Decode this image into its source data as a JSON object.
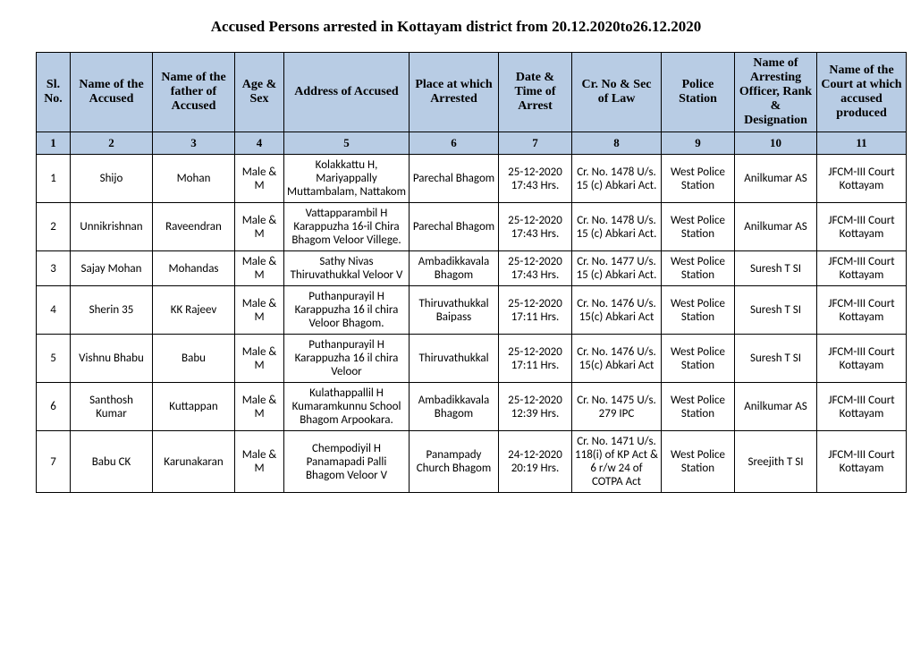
{
  "title": "Accused Persons arrested in   Kottayam    district from  20.12.2020to26.12.2020",
  "columns": [
    "Sl. No.",
    "Name of the Accused",
    "Name of the father of Accused",
    "Age & Sex",
    "Address of Accused",
    "Place at which Arrested",
    "Date & Time of Arrest",
    "Cr. No & Sec of Law",
    "Police Station",
    "Name of Arresting Officer, Rank & Designation",
    "Name of the Court at which accused produced"
  ],
  "column_numbers": [
    "1",
    "2",
    "3",
    "4",
    "5",
    "6",
    "7",
    "8",
    "9",
    "10",
    "11"
  ],
  "rows": [
    {
      "sl": "1",
      "name": "Shijo",
      "father": "Mohan",
      "age_sex": "Male & M",
      "address": "Kolakkattu H, Mariyappally Muttambalam, Nattakom",
      "place": "Parechal Bhagom",
      "datetime": "25-12-2020 17:43 Hrs.",
      "law": "Cr. No. 1478 U/s. 15 (c) Abkari Act.",
      "ps": "West Police Station",
      "officer": "Anilkumar AS",
      "court": "JFCM-III Court Kottayam"
    },
    {
      "sl": "2",
      "name": "Unnikrishnan",
      "father": "Raveendran",
      "age_sex": "Male & M",
      "address": "Vattapparambil H Karappuzha 16-il Chira Bhagom Veloor Villege.",
      "place": "Parechal Bhagom",
      "datetime": "25-12-2020 17:43 Hrs.",
      "law": "Cr. No. 1478 U/s. 15 (c) Abkari Act.",
      "ps": "West Police Station",
      "officer": "Anilkumar AS",
      "court": "JFCM-III Court Kottayam"
    },
    {
      "sl": "3",
      "name": "Sajay Mohan",
      "father": "Mohandas",
      "age_sex": "Male & M",
      "address": "Sathy Nivas Thiruvathukkal Veloor V",
      "place": "Ambadikkavala Bhagom",
      "datetime": "25-12-2020 17:43 Hrs.",
      "law": "Cr. No. 1477 U/s. 15 (c) Abkari Act.",
      "ps": "West Police Station",
      "officer": "Suresh T SI",
      "court": "JFCM-III Court Kottayam"
    },
    {
      "sl": "4",
      "name": "Sherin 35",
      "father": "KK Rajeev",
      "age_sex": "Male & M",
      "address": "Puthanpurayil H Karappuzha 16 il chira Veloor Bhagom.",
      "place": "Thiruvathukkal Baipass",
      "datetime": "25-12-2020 17:11 Hrs.",
      "law": "Cr. No. 1476 U/s. 15(c) Abkari Act",
      "ps": "West Police Station",
      "officer": "Suresh T SI",
      "court": "JFCM-III Court Kottayam"
    },
    {
      "sl": "5",
      "name": "Vishnu Bhabu",
      "father": "Babu",
      "age_sex": "Male & M",
      "address": "Puthanpurayil H Karappuzha 16 il chira Veloor",
      "place": "Thiruvathukkal",
      "datetime": "25-12-2020 17:11 Hrs.",
      "law": "Cr. No. 1476 U/s. 15(c) Abkari Act",
      "ps": "West Police Station",
      "officer": "Suresh T SI",
      "court": "JFCM-III Court Kottayam"
    },
    {
      "sl": "6",
      "name": "Santhosh Kumar",
      "father": "Kuttappan",
      "age_sex": "Male & M",
      "address": "Kulathappallil H Kumaramkunnu School Bhagom Arpookara.",
      "place": "Ambadikkavala Bhagom",
      "datetime": "25-12-2020 12:39 Hrs.",
      "law": "Cr. No. 1475 U/s. 279 IPC",
      "ps": "West Police Station",
      "officer": "Anilkumar AS",
      "court": "JFCM-III Court Kottayam"
    },
    {
      "sl": "7",
      "name": "Babu CK",
      "father": "Karunakaran",
      "age_sex": "Male & M",
      "address": "Chempodiyil H Panamapadi Palli Bhagom Veloor V",
      "place": "Panampady Church Bhagom",
      "datetime": "24-12-2020 20:19 Hrs.",
      "law": "Cr. No. 1471 U/s. 118(i) of KP Act & 6 r/w 24 of COTPA Act",
      "ps": "West Police Station",
      "officer": "Sreejith T SI",
      "court": "JFCM-III Court Kottayam"
    }
  ],
  "styling": {
    "header_bg": "#b8cce4",
    "border_color": "#000000",
    "body_bg": "#ffffff",
    "cell_font_size": 13,
    "header_font_size": 14,
    "title_font_size": 17
  }
}
